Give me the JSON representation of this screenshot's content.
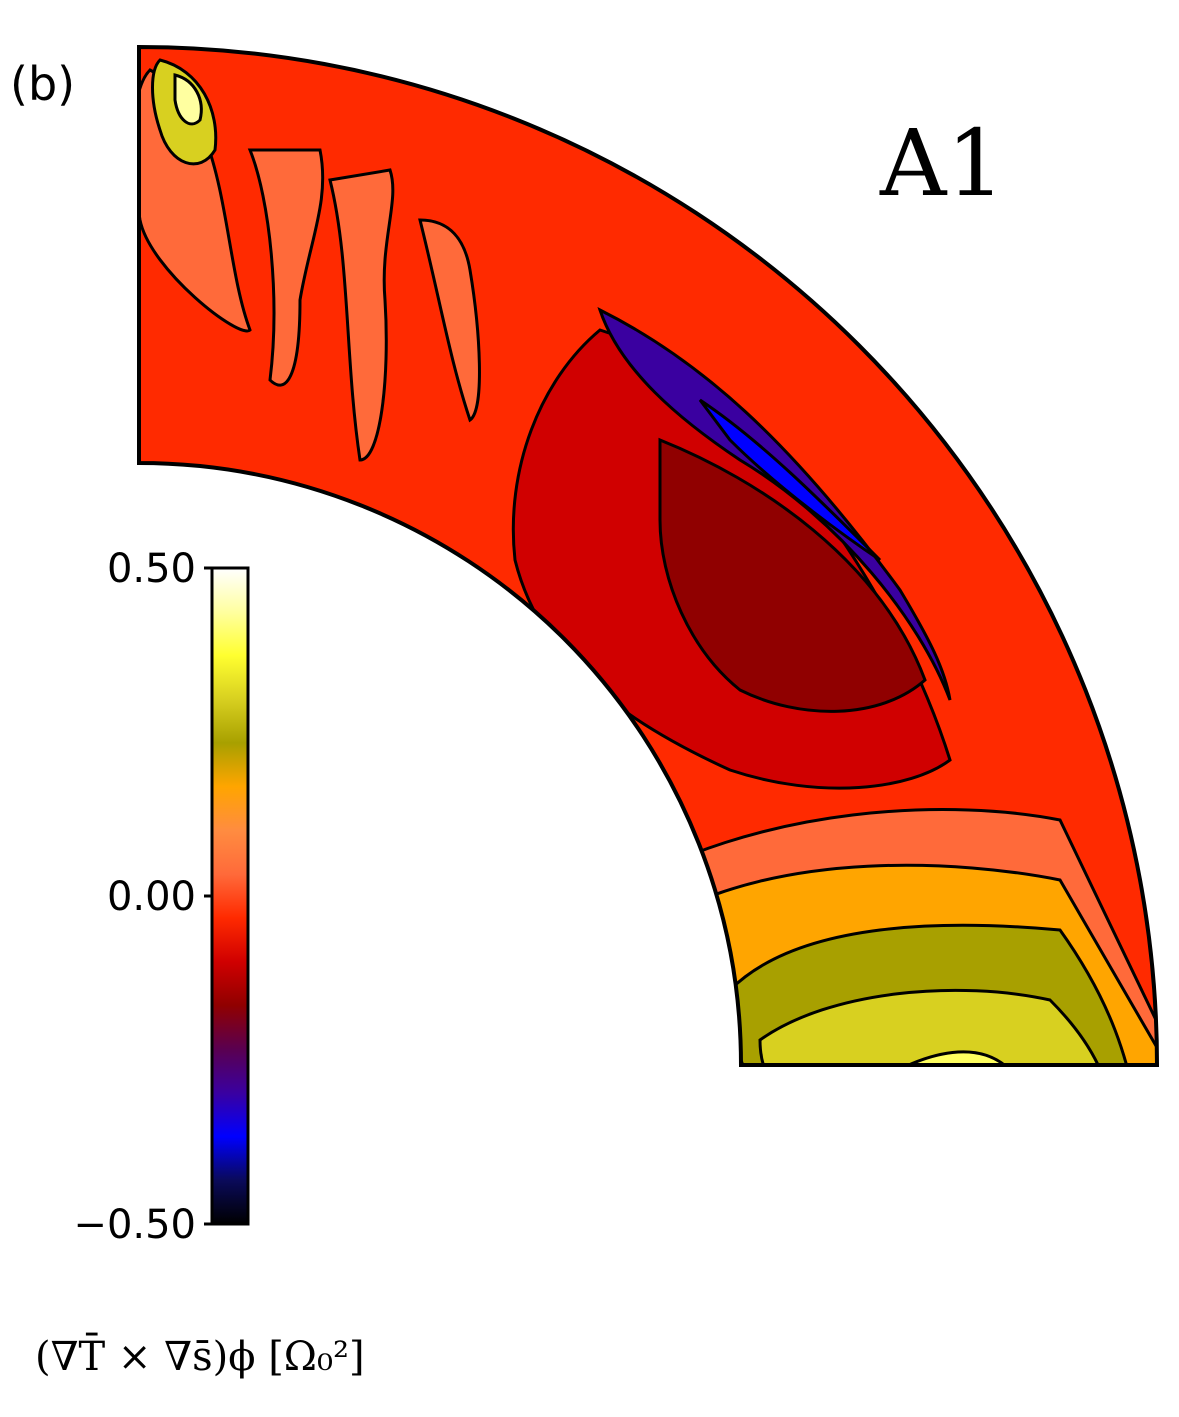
{
  "chart_data": {
    "type": "heatmap",
    "panel_label": "(b)",
    "case_label": "A1",
    "colorbar": {
      "title": "(∇T̄ × ∇s̄)ϕ [Ω₀²]",
      "vmin": -0.5,
      "vmax": 0.5,
      "ticks": [
        {
          "value": 0.5,
          "label": "0.50"
        },
        {
          "value": 0.0,
          "label": "0.00"
        },
        {
          "value": -0.5,
          "label": "−0.50"
        }
      ],
      "colors": [
        "#000000",
        "#0a0a5a",
        "#0000ff",
        "#3a00a0",
        "#5a0050",
        "#900000",
        "#d00000",
        "#ff2a00",
        "#ff6a3a",
        "#ff8c40",
        "#ffa500",
        "#a8a000",
        "#d8d020",
        "#ffff30",
        "#ffffa0",
        "#ffffff"
      ]
    },
    "domain": "meridional quarter-annulus (northern hemisphere)",
    "regions": [
      {
        "name": "mid-latitude bulk",
        "value": 0.0
      },
      {
        "name": "dark-red mid-depth lobe",
        "value": -0.12
      },
      {
        "name": "violet tangent-cylinder band",
        "value": -0.3
      },
      {
        "name": "blue surface streak",
        "value": -0.45
      },
      {
        "name": "olive equatorial lobe",
        "value": 0.22
      },
      {
        "name": "yellow equatorial core",
        "value": 0.33
      },
      {
        "name": "pale-yellow centre",
        "value": 0.42
      }
    ]
  }
}
